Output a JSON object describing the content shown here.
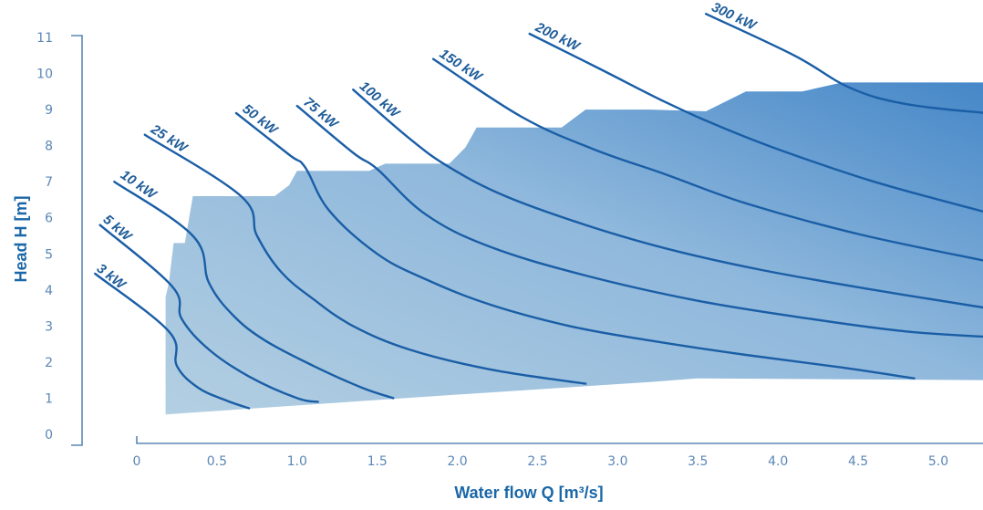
{
  "chart_data": {
    "type": "area",
    "xlabel": "Water flow Q [m³/s]",
    "ylabel": "Head H [m]",
    "xlim": [
      0,
      5.3
    ],
    "ylim": [
      0,
      11
    ],
    "x_ticks": [
      "0",
      "0.5",
      "1.0",
      "1.5",
      "2.0",
      "2.5",
      "3.0",
      "3.5",
      "4.0",
      "4.5",
      "5.0"
    ],
    "x_tick_values": [
      0,
      0.5,
      1.0,
      1.5,
      2.0,
      2.5,
      3.0,
      3.5,
      4.0,
      4.5,
      5.0
    ],
    "y_ticks": [
      "0",
      "1",
      "2",
      "3",
      "4",
      "5",
      "6",
      "7",
      "8",
      "9",
      "10",
      "11"
    ],
    "y_tick_values": [
      0,
      1,
      2,
      3,
      4,
      5,
      6,
      7,
      8,
      9,
      10,
      11
    ],
    "grid": false,
    "colors": {
      "area_light": "#a9c8de",
      "area_dark": "#4b8ac8",
      "curve": "#1a5ea6",
      "axis": "#5b87b6",
      "axis_label": "#1a67a8"
    },
    "application_range": [
      [
        0.18,
        0.55
      ],
      [
        0.18,
        3.8
      ],
      [
        0.2,
        4.2
      ],
      [
        0.23,
        5.3
      ],
      [
        0.3,
        5.3
      ],
      [
        0.35,
        6.6
      ],
      [
        0.85,
        6.6
      ],
      [
        0.86,
        6.6
      ],
      [
        0.95,
        6.9
      ],
      [
        1.0,
        7.3
      ],
      [
        1.45,
        7.3
      ],
      [
        1.55,
        7.5
      ],
      [
        1.95,
        7.5
      ],
      [
        2.05,
        7.95
      ],
      [
        2.12,
        8.5
      ],
      [
        2.65,
        8.5
      ],
      [
        2.8,
        9.0
      ],
      [
        3.2,
        9.0
      ],
      [
        3.55,
        8.95
      ],
      [
        3.8,
        9.5
      ],
      [
        4.15,
        9.5
      ],
      [
        4.4,
        9.75
      ],
      [
        5.3,
        9.75
      ],
      [
        5.3,
        1.5
      ],
      [
        3.5,
        1.55
      ],
      [
        3.2,
        1.45
      ],
      [
        2.0,
        1.1
      ],
      [
        0.18,
        0.55
      ]
    ],
    "series": [
      {
        "name": "3 kW",
        "label_anchor": [
          -0.29,
          4.48
        ],
        "points": [
          [
            -0.26,
            4.45
          ],
          [
            0.2,
            2.85
          ],
          [
            0.25,
            1.9
          ],
          [
            0.38,
            1.3
          ],
          [
            0.55,
            0.95
          ],
          [
            0.7,
            0.72
          ]
        ]
      },
      {
        "name": "5 kW",
        "label_anchor": [
          -0.25,
          5.85
        ],
        "points": [
          [
            -0.23,
            5.8
          ],
          [
            0.22,
            4.1
          ],
          [
            0.28,
            3.2
          ],
          [
            0.45,
            2.35
          ],
          [
            0.7,
            1.6
          ],
          [
            1.0,
            1.0
          ],
          [
            1.13,
            0.9
          ]
        ]
      },
      {
        "name": "10 kW",
        "label_anchor": [
          -0.14,
          7.05
        ],
        "points": [
          [
            -0.14,
            7.0
          ],
          [
            0.35,
            5.5
          ],
          [
            0.45,
            4.2
          ],
          [
            0.6,
            3.3
          ],
          [
            0.8,
            2.6
          ],
          [
            1.1,
            1.9
          ],
          [
            1.4,
            1.3
          ],
          [
            1.6,
            1.0
          ]
        ]
      },
      {
        "name": "25 kW",
        "label_anchor": [
          0.05,
          8.3
        ],
        "points": [
          [
            0.05,
            8.3
          ],
          [
            0.65,
            6.6
          ],
          [
            0.75,
            5.5
          ],
          [
            0.9,
            4.5
          ],
          [
            1.1,
            3.75
          ],
          [
            1.35,
            3.0
          ],
          [
            1.7,
            2.35
          ],
          [
            2.2,
            1.8
          ],
          [
            2.8,
            1.4
          ]
        ]
      },
      {
        "name": "50 kW",
        "label_anchor": [
          0.62,
          8.9
        ],
        "points": [
          [
            0.62,
            8.9
          ],
          [
            0.95,
            7.75
          ],
          [
            1.05,
            7.4
          ],
          [
            1.2,
            6.2
          ],
          [
            1.5,
            5.0
          ],
          [
            1.8,
            4.3
          ],
          [
            2.2,
            3.6
          ],
          [
            2.7,
            3.0
          ],
          [
            3.2,
            2.6
          ],
          [
            3.8,
            2.2
          ],
          [
            4.4,
            1.85
          ],
          [
            4.85,
            1.55
          ]
        ]
      },
      {
        "name": "75 kW",
        "label_anchor": [
          1.0,
          9.1
        ],
        "points": [
          [
            1.0,
            9.1
          ],
          [
            1.35,
            7.8
          ],
          [
            1.5,
            7.35
          ],
          [
            1.8,
            6.1
          ],
          [
            2.2,
            5.2
          ],
          [
            2.8,
            4.4
          ],
          [
            3.5,
            3.7
          ],
          [
            4.2,
            3.2
          ],
          [
            4.8,
            2.85
          ],
          [
            5.3,
            2.7
          ]
        ]
      },
      {
        "name": "100 kW",
        "label_anchor": [
          1.35,
          9.55
        ],
        "points": [
          [
            1.35,
            9.55
          ],
          [
            1.7,
            8.2
          ],
          [
            1.95,
            7.4
          ],
          [
            2.3,
            6.6
          ],
          [
            2.8,
            5.8
          ],
          [
            3.3,
            5.15
          ],
          [
            3.9,
            4.55
          ],
          [
            4.6,
            4.0
          ],
          [
            5.3,
            3.5
          ]
        ]
      },
      {
        "name": "150 kW",
        "label_anchor": [
          1.85,
          10.4
        ],
        "points": [
          [
            1.85,
            10.4
          ],
          [
            2.4,
            8.8
          ],
          [
            2.85,
            7.9
          ],
          [
            3.3,
            7.2
          ],
          [
            3.8,
            6.4
          ],
          [
            4.5,
            5.55
          ],
          [
            5.3,
            4.8
          ]
        ]
      },
      {
        "name": "200 kW",
        "label_anchor": [
          2.45,
          11.1
        ],
        "points": [
          [
            2.45,
            11.1
          ],
          [
            2.9,
            10.1
          ],
          [
            3.3,
            9.2
          ],
          [
            3.6,
            8.6
          ],
          [
            4.0,
            7.9
          ],
          [
            4.6,
            7.0
          ],
          [
            5.3,
            6.15
          ]
        ]
      },
      {
        "name": "300 kW",
        "label_anchor": [
          3.55,
          11.65
        ],
        "points": [
          [
            3.55,
            11.65
          ],
          [
            4.1,
            10.5
          ],
          [
            4.45,
            9.6
          ],
          [
            4.8,
            9.15
          ],
          [
            5.3,
            8.9
          ]
        ]
      }
    ]
  }
}
